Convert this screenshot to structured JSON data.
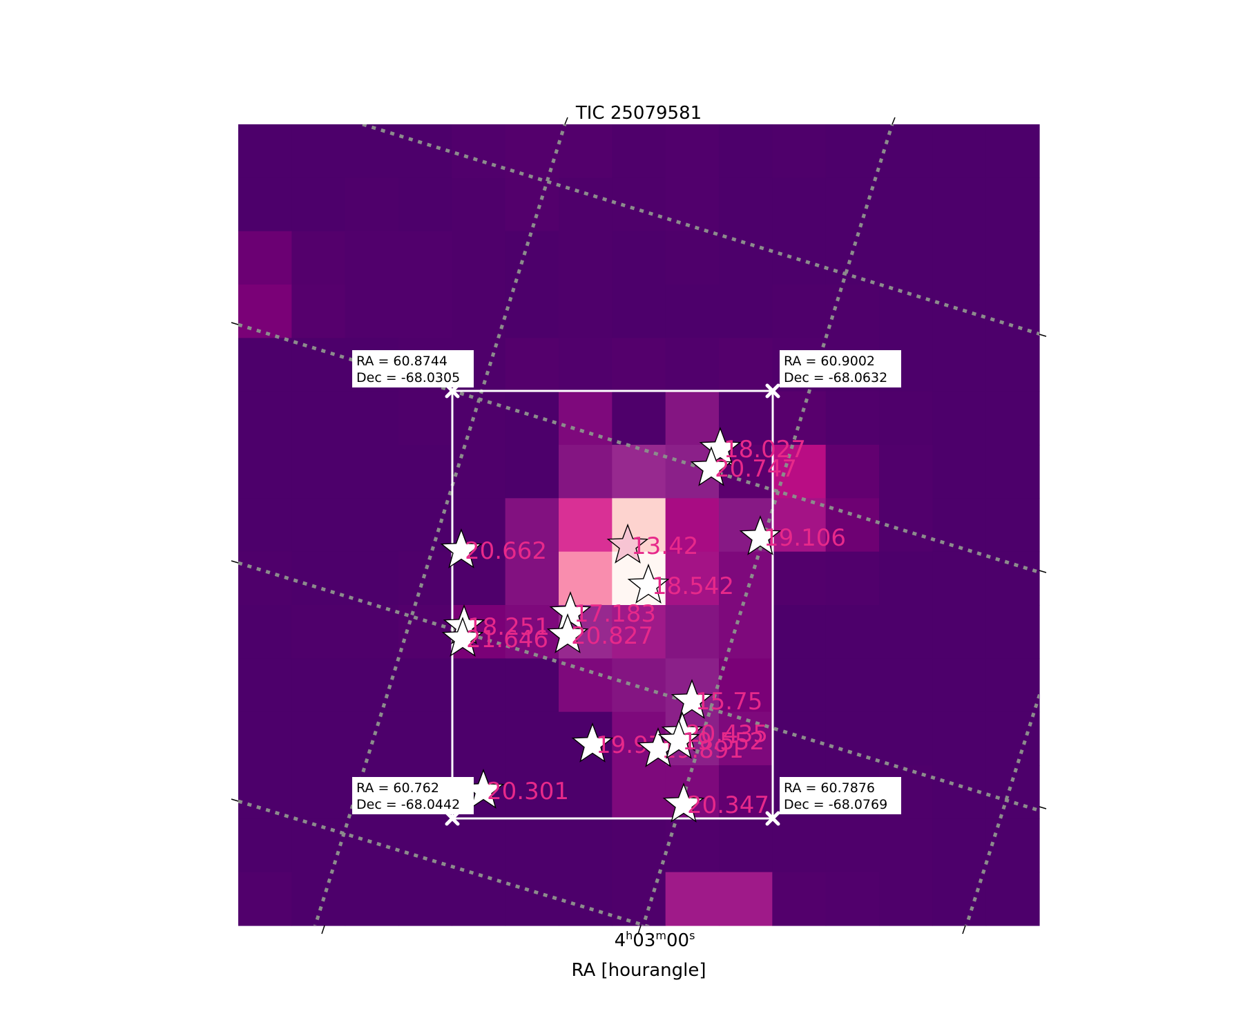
{
  "chart_data": {
    "type": "heatmap",
    "title": "TIC 25079581",
    "xlabel": "RA [hourangle]",
    "ylabel": "",
    "x_tick_labels": [
      {
        "hours": "4",
        "minutes": "03",
        "seconds": "00"
      }
    ],
    "pixel_grid": {
      "rows": 15,
      "cols": 15
    },
    "colormap": "RdPu",
    "flux_level_rows": [
      [
        0.02,
        0.02,
        0.02,
        0.02,
        0.04,
        0.06,
        0.05,
        0.03,
        0.04,
        0.02,
        0.03,
        0.02,
        0.02,
        0.02,
        0.02
      ],
      [
        0.02,
        0.02,
        0.03,
        0.02,
        0.03,
        0.05,
        0.03,
        0.03,
        0.04,
        0.02,
        0.02,
        0.02,
        0.02,
        0.02,
        0.02
      ],
      [
        0.15,
        0.06,
        0.04,
        0.04,
        0.03,
        0.02,
        0.03,
        0.02,
        0.03,
        0.02,
        0.02,
        0.02,
        0.02,
        0.02,
        0.02
      ],
      [
        0.2,
        0.07,
        0.04,
        0.04,
        0.03,
        0.02,
        0.03,
        0.02,
        0.02,
        0.02,
        0.03,
        0.03,
        0.02,
        0.02,
        0.02
      ],
      [
        0.02,
        0.02,
        0.02,
        0.03,
        0.03,
        0.06,
        0.04,
        0.06,
        0.04,
        0.06,
        0.04,
        0.03,
        0.02,
        0.02,
        0.02
      ],
      [
        0.02,
        0.02,
        0.02,
        0.03,
        0.03,
        0.02,
        0.22,
        0.03,
        0.25,
        0.05,
        0.08,
        0.04,
        0.03,
        0.02,
        0.02
      ],
      [
        0.02,
        0.02,
        0.02,
        0.02,
        0.03,
        0.02,
        0.25,
        0.34,
        0.28,
        0.1,
        0.48,
        0.12,
        0.04,
        0.02,
        0.02
      ],
      [
        0.02,
        0.02,
        0.02,
        0.02,
        0.03,
        0.24,
        0.57,
        0.95,
        0.42,
        0.26,
        0.4,
        0.16,
        0.04,
        0.02,
        0.02
      ],
      [
        0.03,
        0.02,
        0.02,
        0.03,
        0.03,
        0.24,
        0.8,
        1.0,
        0.4,
        0.22,
        0.05,
        0.04,
        0.02,
        0.02,
        0.02
      ],
      [
        0.02,
        0.03,
        0.03,
        0.05,
        0.2,
        0.22,
        0.34,
        0.38,
        0.25,
        0.22,
        0.02,
        0.02,
        0.02,
        0.02,
        0.02
      ],
      [
        0.02,
        0.02,
        0.02,
        0.02,
        0.02,
        0.02,
        0.22,
        0.25,
        0.28,
        0.2,
        0.02,
        0.02,
        0.02,
        0.02,
        0.02
      ],
      [
        0.02,
        0.02,
        0.02,
        0.02,
        0.02,
        0.02,
        0.02,
        0.22,
        0.28,
        0.22,
        0.02,
        0.02,
        0.02,
        0.02,
        0.02
      ],
      [
        0.02,
        0.02,
        0.02,
        0.02,
        0.02,
        0.02,
        0.02,
        0.22,
        0.22,
        0.12,
        0.02,
        0.02,
        0.03,
        0.02,
        0.02
      ],
      [
        0.02,
        0.02,
        0.02,
        0.02,
        0.02,
        0.02,
        0.02,
        0.03,
        0.04,
        0.03,
        0.03,
        0.03,
        0.03,
        0.02,
        0.02
      ],
      [
        0.04,
        0.02,
        0.02,
        0.02,
        0.02,
        0.02,
        0.02,
        0.03,
        0.38,
        0.38,
        0.05,
        0.04,
        0.03,
        0.02,
        0.02
      ]
    ],
    "aperture_corners": [
      {
        "ra": "60.8744",
        "dec": "-68.0305",
        "corner": "top-left"
      },
      {
        "ra": "60.9002",
        "dec": "-68.0632",
        "corner": "top-right"
      },
      {
        "ra": "60.762",
        "dec": "-68.0442",
        "corner": "bottom-left"
      },
      {
        "ra": "60.7876",
        "dec": "-68.0769",
        "corner": "bottom-right"
      }
    ],
    "stars": [
      {
        "label": "18.027",
        "target": false
      },
      {
        "label": "20.747",
        "target": false
      },
      {
        "label": "20.662",
        "target": false
      },
      {
        "label": "13.42",
        "target": true
      },
      {
        "label": "19.106",
        "target": false
      },
      {
        "label": "18.542",
        "target": false
      },
      {
        "label": "17.183",
        "target": false
      },
      {
        "label": "18.251",
        "target": false
      },
      {
        "label": "21.646",
        "target": false
      },
      {
        "label": "20.827",
        "target": false
      },
      {
        "label": "15.75",
        "target": false
      },
      {
        "label": "19.97",
        "target": false
      },
      {
        "label": "20.435",
        "target": false
      },
      {
        "label": "19.891",
        "target": false
      },
      {
        "label": "19.552",
        "target": false
      },
      {
        "label": "20.301",
        "target": false
      },
      {
        "label": "20.347",
        "target": false
      }
    ],
    "grid": "dotted gray coordinate grid",
    "colors": {
      "star_label": "#e7298a",
      "star_fill": "#ffffff",
      "target_fill": "#f7c4d3",
      "grid_line": "#8c8c8c",
      "aperture": "#ffffff"
    }
  }
}
